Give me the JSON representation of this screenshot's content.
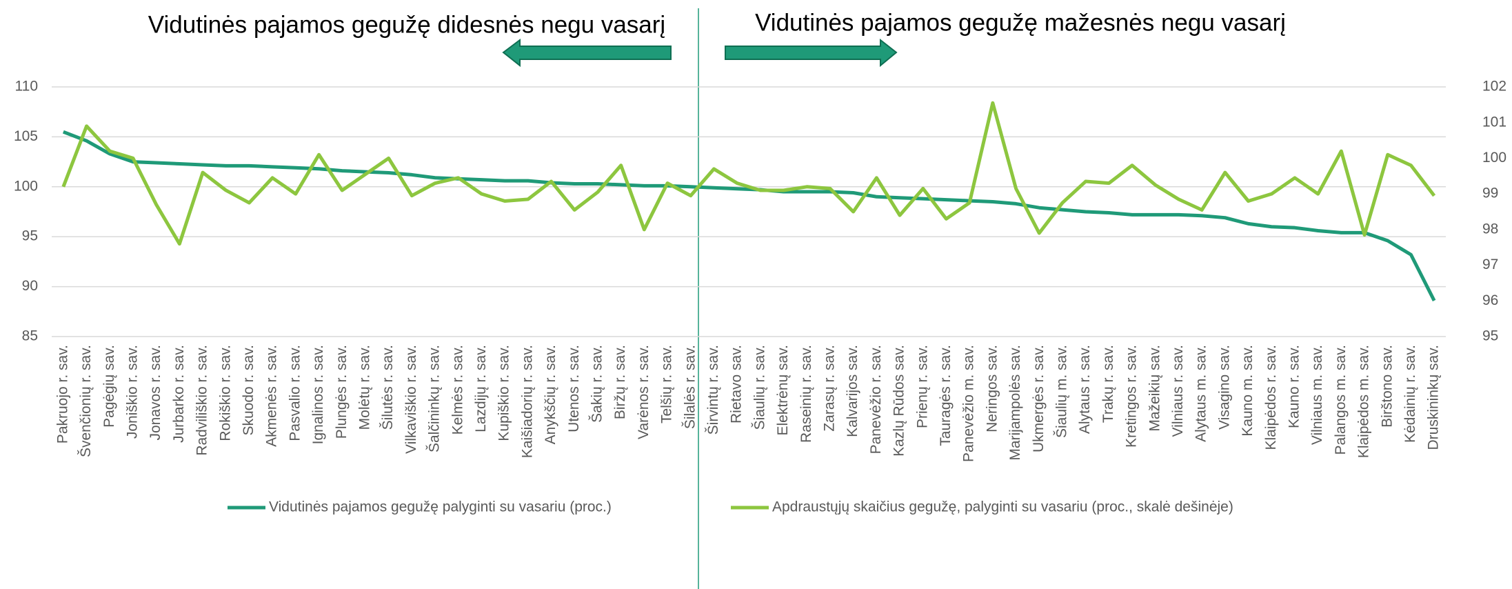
{
  "chart_data": {
    "type": "line",
    "annotations": [
      "Vidutinės pajamos gegužę didesnės negu vasarį",
      "Vidutinės pajamos gegužę mažesnės negu vasarį"
    ],
    "categories": [
      "Pakruojo r. sav.",
      "Švenčionių r. sav.",
      "Pagėgių sav.",
      "Joniškio r. sav.",
      "Jonavos r. sav.",
      "Jurbarko r. sav.",
      "Radviliškio r. sav.",
      "Rokiškio r. sav.",
      "Skuodo r. sav.",
      "Akmenės r. sav.",
      "Pasvalio r. sav.",
      "Ignalinos r. sav.",
      "Plungės r. sav.",
      "Molėtų r. sav.",
      "Šilutės r. sav.",
      "Vilkaviškio r. sav.",
      "Šalčininkų r. sav.",
      "Kelmės r. sav.",
      "Lazdijų r. sav.",
      "Kupiškio r. sav.",
      "Kaišiadorių r. sav.",
      "Anykščių r. sav.",
      "Utenos r. sav.",
      "Šakių r. sav.",
      "Biržų r. sav.",
      "Varėnos r. sav.",
      "Telšių r. sav.",
      "Šilalės r. sav.",
      "Širvintų r. sav.",
      "Rietavo sav.",
      "Šiaulių r. sav.",
      "Elektrėnų sav.",
      "Raseinių r. sav.",
      "Zarasų r. sav.",
      "Kalvarijos sav.",
      "Panevėžio r. sav.",
      "Kazlų Rūdos sav.",
      "Prienų r. sav.",
      "Tauragės r. sav.",
      "Panevėžio m. sav.",
      "Neringos sav.",
      "Marijampolės sav.",
      "Ukmergės r. sav.",
      "Šiaulių m. sav.",
      "Alytaus r. sav.",
      "Trakų r. sav.",
      "Kretingos r. sav.",
      "Mažeikių sav.",
      "Vilniaus r. sav.",
      "Alytaus m. sav.",
      "Visagino sav.",
      "Kauno m. sav.",
      "Klaipėdos r. sav.",
      "Kauno r. sav.",
      "Vilniaus m. sav.",
      "Palangos m. sav.",
      "Klaipėdos m. sav.",
      "Birštono sav.",
      "Kėdainių r. sav.",
      "Druskininkų sav."
    ],
    "series": [
      {
        "name": "Vidutinės pajamos gegužę palyginti su vasariu (proc.)",
        "color": "#1f9a78",
        "values": [
          105.5,
          104.6,
          103.3,
          102.5,
          102.4,
          102.3,
          102.2,
          102.1,
          102.1,
          102.0,
          101.9,
          101.8,
          101.6,
          101.5,
          101.4,
          101.2,
          100.9,
          100.8,
          100.7,
          100.6,
          100.6,
          100.4,
          100.3,
          100.3,
          100.2,
          100.1,
          100.1,
          100.0,
          99.9,
          99.8,
          99.7,
          99.5,
          99.5,
          99.5,
          99.4,
          99.0,
          98.9,
          98.8,
          98.7,
          98.6,
          98.5,
          98.3,
          97.9,
          97.7,
          97.5,
          97.4,
          97.2,
          97.2,
          97.2,
          97.1,
          96.9,
          96.3,
          96.0,
          95.9,
          95.6,
          95.4,
          95.4,
          94.6,
          93.2,
          88.6
        ]
      },
      {
        "name": "Apdraustųjų skaičius gegužę, palyginti su vasariu (proc., skalė dešinėje)",
        "color": "#8dc63f",
        "axis": "y2",
        "values": [
          99.2,
          100.9,
          100.2,
          100.0,
          98.7,
          97.6,
          99.6,
          99.1,
          98.75,
          99.45,
          99.0,
          100.1,
          99.1,
          99.55,
          100.0,
          98.95,
          99.3,
          99.45,
          99.0,
          98.8,
          98.85,
          99.35,
          98.55,
          99.05,
          99.8,
          98.0,
          99.3,
          98.95,
          99.7,
          99.3,
          99.1,
          99.1,
          99.2,
          99.15,
          98.5,
          99.45,
          98.4,
          99.15,
          98.3,
          98.75,
          101.55,
          99.15,
          97.9,
          98.75,
          99.35,
          99.3,
          99.8,
          99.25,
          98.85,
          98.55,
          99.6,
          98.8,
          99.0,
          99.45,
          99.0,
          100.2,
          97.85,
          100.1,
          99.8,
          98.95
        ]
      }
    ],
    "ylim": [
      85,
      110
    ],
    "yticks": [
      85,
      90,
      95,
      100,
      105,
      110
    ],
    "y2lim": [
      95,
      102
    ],
    "y2ticks": [
      95,
      96,
      97,
      98,
      99,
      100,
      101,
      102
    ],
    "grid": true,
    "legend": "bottom"
  }
}
